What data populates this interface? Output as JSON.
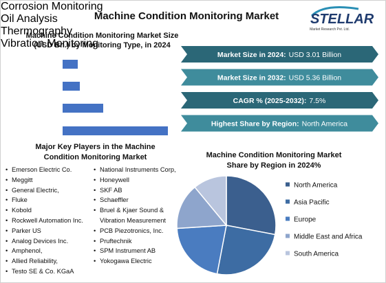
{
  "title": "Machine Condition Monitoring Market",
  "logo": {
    "name": "STELLAR",
    "tagline": "Market Research Pvt. Ltd."
  },
  "stats": [
    {
      "label": "Market Size in 2024:",
      "value": "USD 3.01 Billion"
    },
    {
      "label": "Market Size in 2032:",
      "value": "USD 5.36 Billion"
    },
    {
      "label": "CAGR % (2025-2032):",
      "value": "7.5%"
    },
    {
      "label": "Highest Share by Region:",
      "value": "North America"
    }
  ],
  "key_players": {
    "title": "Major Key Players in the Machine Condition Monitoring Market",
    "columns": [
      [
        "Emerson Electric Co.",
        "Meggitt",
        "General Electric,",
        "Fluke",
        "Kobold",
        "Rockwell Automation Inc.",
        "Parker US",
        "Analog Devices Inc.",
        "Amphenol,",
        "Allied Reliability,",
        "Testo SE & Co. KGaA"
      ],
      [
        "National Instruments Corp,",
        "Honeywell",
        "SKF AB",
        "Schaeffler",
        "Bruel & Kjaer Sound & Vibration Measurement",
        "PCB Piezotronics, Inc.",
        "Pruftechnik",
        "SPM Instrument AB",
        "Yokogawa Electric"
      ]
    ]
  },
  "chart_data": [
    {
      "type": "bar",
      "orientation": "horizontal",
      "title": "Machine Condition Monitoring Market Size (USD Bn.) by Monitoring Type, in 2024",
      "categories": [
        "Corrosion Monitoring",
        "Oil Analysis",
        "Thermography",
        "Vibration Monitoring"
      ],
      "values": [
        0.25,
        0.29,
        0.69,
        1.78
      ],
      "color": "#4472c4"
    },
    {
      "type": "pie",
      "title": "Machine Condition Monitoring Market Share by Region in 2024%",
      "categories": [
        "North America",
        "Asia Pacific",
        "Europe",
        "Middle East and Africa",
        "South America"
      ],
      "values": [
        28,
        25,
        21,
        15,
        11
      ],
      "colors": [
        "#3b5f8e",
        "#3d6ca3",
        "#4a7cc0",
        "#8ea5cc",
        "#b9c5de"
      ],
      "legend": "right"
    }
  ]
}
